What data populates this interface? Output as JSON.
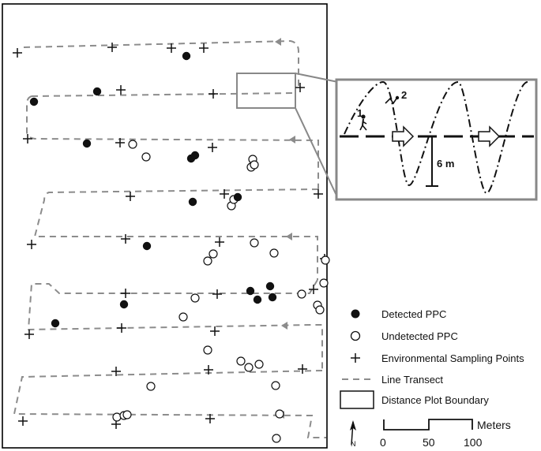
{
  "legend": {
    "detected": "Detected PPC",
    "undetected": "Undetected PPC",
    "sampling": "Environmental Sampling Points",
    "transect": "Line Transect",
    "plot_boundary": "Distance Plot Boundary"
  },
  "scale_bar": {
    "tick_labels": [
      "0",
      "50",
      "100"
    ],
    "unit": "Meters"
  },
  "north_label": "N",
  "inset": {
    "distance_label": "6 m",
    "observer_labels": [
      "1",
      "2"
    ]
  },
  "colors": {
    "detected_fill": "#111111",
    "transect_dash": "#8c8c8c",
    "inset_border": "#888888",
    "frame": "#000000"
  },
  "icons": {
    "detected": "filled-circle-marker",
    "undetected": "open-circle-marker",
    "sampling": "plus-marker",
    "observer": "walking-person-icon",
    "direction": "arrow-right-icon",
    "north": "north-arrow-icon"
  }
}
